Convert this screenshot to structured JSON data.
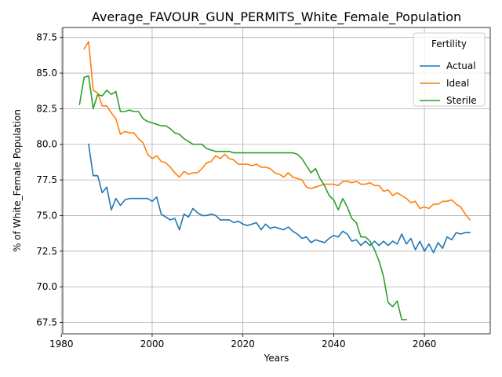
{
  "chart_data": {
    "type": "line",
    "title": "Average_FAVOUR_GUN_PERMITS_White_Female_Population",
    "xlabel": "Years",
    "ylabel": "% of White_Female Population",
    "xlim": [
      1980.3,
      2074.5
    ],
    "ylim": [
      66.7,
      88.2
    ],
    "xticks": [
      1980,
      2000,
      2020,
      2040,
      2060
    ],
    "yticks": [
      67.5,
      70.0,
      72.5,
      75.0,
      77.5,
      80.0,
      82.5,
      85.0,
      87.5
    ],
    "grid": true,
    "legend": {
      "title": "Fertility",
      "position": "top-right"
    },
    "series": [
      {
        "name": "Actual",
        "color": "#1f77b4",
        "x": [
          1986,
          1987,
          1988,
          1989,
          1990,
          1991,
          1992,
          1993,
          1994,
          1995,
          1996,
          1997,
          1998,
          1999,
          2000,
          2001,
          2002,
          2003,
          2004,
          2005,
          2006,
          2007,
          2008,
          2009,
          2010,
          2011,
          2012,
          2013,
          2014,
          2015,
          2016,
          2017,
          2018,
          2019,
          2020,
          2021,
          2022,
          2023,
          2024,
          2025,
          2026,
          2027,
          2028,
          2029,
          2030,
          2031,
          2032,
          2033,
          2034,
          2035,
          2036,
          2037,
          2038,
          2039,
          2040,
          2041,
          2042,
          2043,
          2044,
          2045,
          2046,
          2047,
          2048,
          2049,
          2050,
          2051,
          2052,
          2053,
          2054,
          2055,
          2056,
          2057,
          2058,
          2059,
          2060,
          2061,
          2062,
          2063,
          2064,
          2065,
          2066,
          2067,
          2068,
          2069,
          2070
        ],
        "y": [
          80.0,
          77.8,
          77.8,
          76.6,
          77.0,
          75.4,
          76.2,
          75.7,
          76.1,
          76.2,
          76.2,
          76.2,
          76.2,
          76.2,
          76.0,
          76.3,
          75.1,
          74.9,
          74.7,
          74.8,
          74.0,
          75.1,
          74.9,
          75.5,
          75.2,
          75.0,
          75.0,
          75.1,
          75.0,
          74.7,
          74.7,
          74.7,
          74.5,
          74.6,
          74.4,
          74.3,
          74.4,
          74.5,
          74.0,
          74.4,
          74.1,
          74.2,
          74.1,
          74.0,
          74.2,
          73.9,
          73.7,
          73.4,
          73.5,
          73.1,
          73.3,
          73.2,
          73.1,
          73.4,
          73.6,
          73.5,
          73.9,
          73.7,
          73.2,
          73.3,
          72.9,
          73.2,
          72.9,
          73.2,
          72.9,
          73.2,
          72.9,
          73.2,
          73.0,
          73.7,
          73.0,
          73.4,
          72.6,
          73.2,
          72.5,
          73.0,
          72.4,
          73.1,
          72.7,
          73.5,
          73.3,
          73.8,
          73.7,
          73.8,
          73.8
        ]
      },
      {
        "name": "Ideal",
        "color": "#ff7f0e",
        "x": [
          1985,
          1986,
          1987,
          1988,
          1989,
          1990,
          1991,
          1992,
          1993,
          1994,
          1995,
          1996,
          1997,
          1998,
          1999,
          2000,
          2001,
          2002,
          2003,
          2004,
          2005,
          2006,
          2007,
          2008,
          2009,
          2010,
          2011,
          2012,
          2013,
          2014,
          2015,
          2016,
          2017,
          2018,
          2019,
          2020,
          2021,
          2022,
          2023,
          2024,
          2025,
          2026,
          2027,
          2028,
          2029,
          2030,
          2031,
          2032,
          2033,
          2034,
          2035,
          2036,
          2037,
          2038,
          2039,
          2040,
          2041,
          2042,
          2043,
          2044,
          2045,
          2046,
          2047,
          2048,
          2049,
          2050,
          2051,
          2052,
          2053,
          2054,
          2055,
          2056,
          2057,
          2058,
          2059,
          2060,
          2061,
          2062,
          2063,
          2064,
          2065,
          2066,
          2067,
          2068,
          2069,
          2070
        ],
        "y": [
          86.7,
          87.2,
          83.8,
          83.6,
          82.7,
          82.7,
          82.2,
          81.8,
          80.7,
          80.9,
          80.8,
          80.8,
          80.4,
          80.1,
          79.3,
          79.0,
          79.2,
          78.8,
          78.7,
          78.4,
          78.0,
          77.7,
          78.1,
          77.9,
          78.0,
          78.0,
          78.3,
          78.7,
          78.8,
          79.2,
          79.0,
          79.3,
          79.0,
          78.9,
          78.6,
          78.6,
          78.6,
          78.5,
          78.6,
          78.4,
          78.4,
          78.3,
          78.0,
          77.9,
          77.7,
          78.0,
          77.7,
          77.6,
          77.5,
          77.0,
          76.9,
          77.0,
          77.1,
          77.2,
          77.2,
          77.2,
          77.1,
          77.4,
          77.4,
          77.3,
          77.4,
          77.2,
          77.2,
          77.3,
          77.1,
          77.1,
          76.7,
          76.8,
          76.4,
          76.6,
          76.4,
          76.2,
          75.9,
          76.0,
          75.5,
          75.6,
          75.5,
          75.8,
          75.8,
          76.0,
          76.0,
          76.1,
          75.8,
          75.6,
          75.1,
          74.7
        ]
      },
      {
        "name": "Sterile",
        "color": "#2ca02c",
        "x": [
          1984,
          1985,
          1986,
          1987,
          1988,
          1989,
          1990,
          1991,
          1992,
          1993,
          1994,
          1995,
          1996,
          1997,
          1998,
          1999,
          2000,
          2001,
          2002,
          2003,
          2004,
          2005,
          2006,
          2007,
          2008,
          2009,
          2010,
          2011,
          2012,
          2013,
          2014,
          2015,
          2016,
          2017,
          2018,
          2019,
          2020,
          2021,
          2022,
          2023,
          2024,
          2025,
          2026,
          2027,
          2028,
          2029,
          2030,
          2031,
          2032,
          2033,
          2034,
          2035,
          2036,
          2037,
          2038,
          2039,
          2040,
          2041,
          2042,
          2043,
          2044,
          2045,
          2046,
          2047,
          2048,
          2049,
          2050,
          2051,
          2052,
          2053,
          2054,
          2055,
          2056
        ],
        "y": [
          82.8,
          84.7,
          84.8,
          82.5,
          83.5,
          83.4,
          83.8,
          83.5,
          83.7,
          82.3,
          82.3,
          82.4,
          82.3,
          82.3,
          81.8,
          81.6,
          81.5,
          81.4,
          81.3,
          81.3,
          81.1,
          80.8,
          80.7,
          80.4,
          80.2,
          80.0,
          80.0,
          80.0,
          79.7,
          79.6,
          79.5,
          79.5,
          79.5,
          79.5,
          79.4,
          79.4,
          79.4,
          79.4,
          79.4,
          79.4,
          79.4,
          79.4,
          79.4,
          79.4,
          79.4,
          79.4,
          79.4,
          79.4,
          79.3,
          79.0,
          78.5,
          78.0,
          78.3,
          77.6,
          77.1,
          76.4,
          76.1,
          75.4,
          76.2,
          75.6,
          74.8,
          74.5,
          73.5,
          73.5,
          73.2,
          72.6,
          71.8,
          70.7,
          68.9,
          68.6,
          69.0,
          67.7,
          67.7
        ]
      }
    ]
  }
}
